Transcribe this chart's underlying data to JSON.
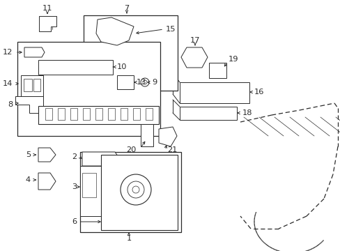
{
  "bg_color": "#ffffff",
  "line_color": "#2a2a2a",
  "red_color": "#cc0000",
  "figsize": [
    4.89,
    3.6
  ],
  "dpi": 100
}
